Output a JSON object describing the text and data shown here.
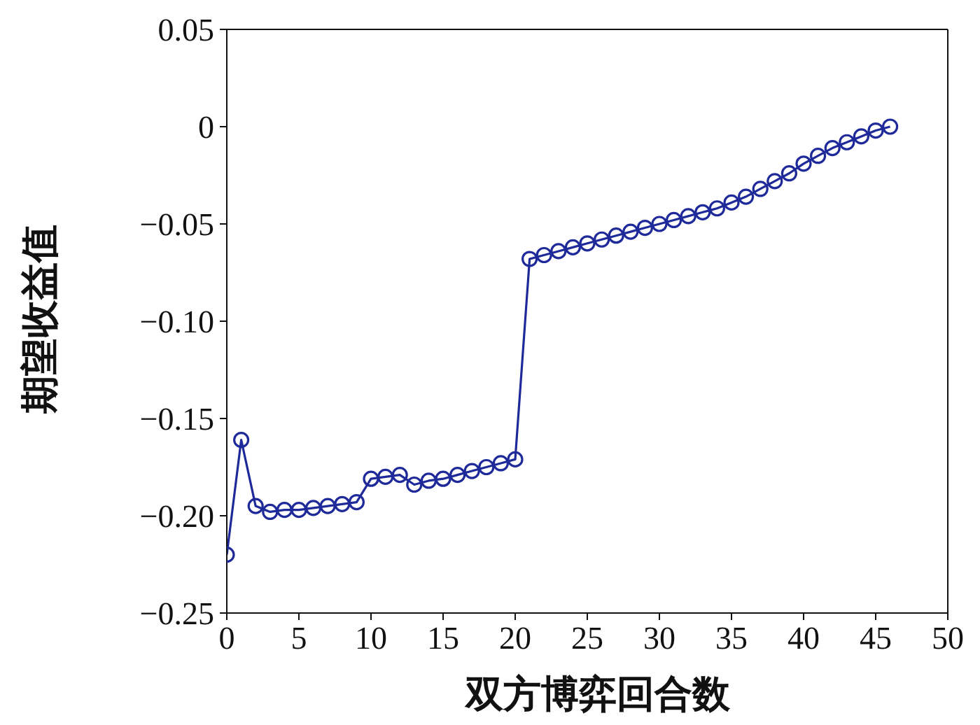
{
  "chart_data": {
    "type": "line",
    "xlabel": "双方博弈回合数",
    "ylabel": "期望收益值",
    "x": [
      0,
      1,
      2,
      3,
      4,
      5,
      6,
      7,
      8,
      9,
      10,
      11,
      12,
      13,
      14,
      15,
      16,
      17,
      18,
      19,
      20,
      21,
      22,
      23,
      24,
      25,
      26,
      27,
      28,
      29,
      30,
      31,
      32,
      33,
      34,
      35,
      36,
      37,
      38,
      39,
      40,
      41,
      42,
      43,
      44,
      45,
      46
    ],
    "series": [
      {
        "color": "#1f2a9a",
        "values": [
          -0.22,
          -0.161,
          -0.195,
          -0.198,
          -0.197,
          -0.197,
          -0.196,
          -0.195,
          -0.194,
          -0.193,
          -0.181,
          -0.18,
          -0.179,
          -0.184,
          -0.182,
          -0.181,
          -0.179,
          -0.177,
          -0.175,
          -0.173,
          -0.171,
          -0.068,
          -0.066,
          -0.064,
          -0.062,
          -0.06,
          -0.058,
          -0.056,
          -0.054,
          -0.052,
          -0.05,
          -0.048,
          -0.046,
          -0.044,
          -0.042,
          -0.039,
          -0.036,
          -0.032,
          -0.028,
          -0.024,
          -0.019,
          -0.015,
          -0.011,
          -0.008,
          -0.005,
          -0.002,
          0.0
        ]
      }
    ],
    "xlim": [
      0,
      50
    ],
    "xticks": [
      0,
      5,
      10,
      15,
      20,
      25,
      30,
      35,
      40,
      45,
      50
    ],
    "ylim": [
      -0.25,
      0.05
    ],
    "yticks": [
      {
        "value": -0.25,
        "label": "−0.25"
      },
      {
        "value": -0.2,
        "label": "−0.20"
      },
      {
        "value": -0.15,
        "label": "−0.15"
      },
      {
        "value": -0.1,
        "label": "−0.10"
      },
      {
        "value": -0.05,
        "label": "−0.05"
      },
      0,
      0.05
    ],
    "marker": "circle",
    "line_style": "solid"
  }
}
